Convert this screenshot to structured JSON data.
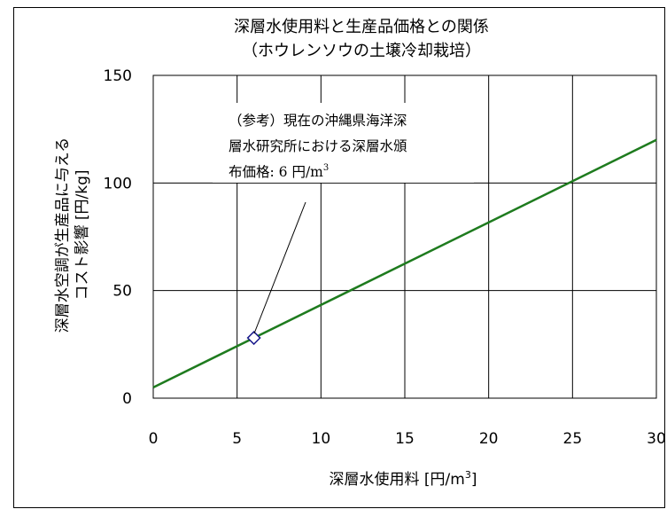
{
  "chart_data": {
    "type": "line",
    "title": [
      "深層水使用料と生産品価格との関係",
      "（ホウレンソウの土壌冷却栽培）"
    ],
    "xlabel": "深層水使用料 [円/m",
    "xlabel_sup": "3",
    "xlabel_end": "]",
    "ylabel": [
      "深層水空調が生産品に与える",
      "コスト影響 [円/kg]"
    ],
    "xlim": [
      0,
      30
    ],
    "ylim": [
      0,
      150
    ],
    "x_ticks": [
      0,
      5,
      10,
      15,
      20,
      25,
      30
    ],
    "y_ticks": [
      0,
      50,
      100,
      150
    ],
    "grid": true,
    "series": [
      {
        "color": "#1e7b1e",
        "x": [
          0,
          30
        ],
        "y": [
          5,
          120
        ]
      }
    ],
    "highlight_point": {
      "x": 6,
      "y": 28
    },
    "annotation": {
      "lines": [
        "（参考）現在の沖縄県海洋深",
        "層水研究所における深層水頒",
        "布価格: 6 円/m"
      ],
      "sup": "3"
    }
  }
}
